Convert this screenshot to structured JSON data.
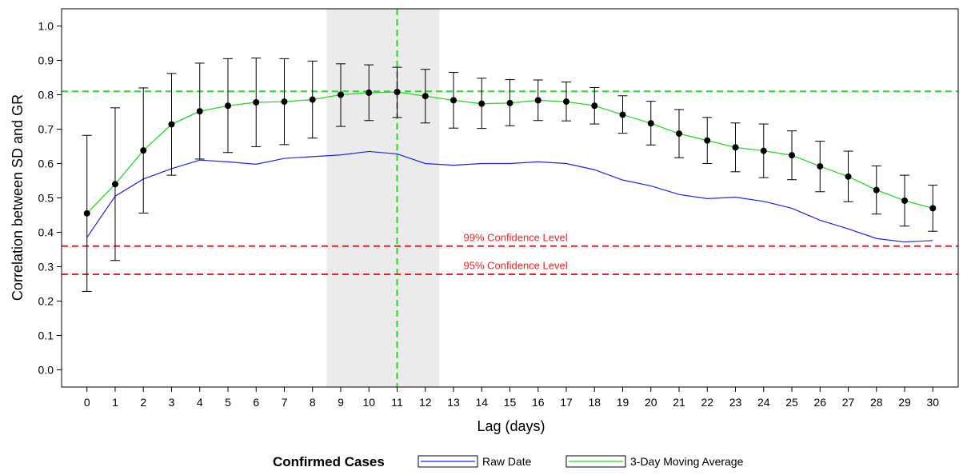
{
  "chart_data": {
    "type": "line",
    "xlabel": "Lag (days)",
    "ylabel": "Correlation between SD and GR",
    "xlim": [
      -0.9,
      30.9
    ],
    "ylim": [
      -0.05,
      1.05
    ],
    "x": [
      0,
      1,
      2,
      3,
      4,
      5,
      6,
      7,
      8,
      9,
      10,
      11,
      12,
      13,
      14,
      15,
      16,
      17,
      18,
      19,
      20,
      21,
      22,
      23,
      24,
      25,
      26,
      27,
      28,
      29,
      30
    ],
    "x_ticks": [
      0,
      1,
      2,
      3,
      4,
      5,
      6,
      7,
      8,
      9,
      10,
      11,
      12,
      13,
      14,
      15,
      16,
      17,
      18,
      19,
      20,
      21,
      22,
      23,
      24,
      25,
      26,
      27,
      28,
      29,
      30
    ],
    "y_ticks": [
      0.0,
      0.1,
      0.2,
      0.3,
      0.4,
      0.5,
      0.6,
      0.7,
      0.8,
      0.9,
      1.0
    ],
    "y_tick_labels": [
      "0.0",
      "0.1",
      "0.2",
      "0.3",
      "0.4",
      "0.5",
      "0.6",
      "0.7",
      "0.8",
      "0.9",
      "1.0"
    ],
    "grid": false,
    "shaded_region": {
      "x_start": 8.5,
      "x_end": 12.5,
      "color": "#ebebeb"
    },
    "reference_lines": [
      {
        "axis": "x",
        "value": 11,
        "color": "#22dd22",
        "style": "dashed"
      },
      {
        "axis": "y",
        "value": 0.81,
        "color": "#22dd22",
        "style": "dashed"
      },
      {
        "axis": "y",
        "value": 0.36,
        "color": "#ee2222",
        "style": "dashed"
      },
      {
        "axis": "y",
        "value": 0.278,
        "color": "#ee2222",
        "style": "dashed"
      }
    ],
    "annotations": [
      {
        "text": "99% Confidence Level",
        "x": 15.2,
        "y": 0.375,
        "color": "#ee2222"
      },
      {
        "text": "95% Confidence Level",
        "x": 15.2,
        "y": 0.293,
        "color": "#ee2222"
      }
    ],
    "series": [
      {
        "name": "Raw Date",
        "color": "#2222ee",
        "markers": false,
        "values": [
          0.385,
          0.505,
          0.555,
          0.585,
          0.61,
          0.605,
          0.598,
          0.615,
          0.62,
          0.625,
          0.635,
          0.628,
          0.6,
          0.595,
          0.6,
          0.6,
          0.605,
          0.6,
          0.582,
          0.552,
          0.535,
          0.51,
          0.498,
          0.502,
          0.49,
          0.47,
          0.435,
          0.41,
          0.382,
          0.372,
          0.376
        ]
      },
      {
        "name": "3-Day Moving Average",
        "color": "#22dd22",
        "markers": true,
        "marker_color": "#000000",
        "values": [
          0.455,
          0.54,
          0.638,
          0.714,
          0.752,
          0.768,
          0.778,
          0.78,
          0.786,
          0.8,
          0.806,
          0.808,
          0.796,
          0.784,
          0.774,
          0.776,
          0.784,
          0.78,
          0.768,
          0.742,
          0.717,
          0.687,
          0.667,
          0.647,
          0.637,
          0.624,
          0.592,
          0.562,
          0.523,
          0.492,
          0.47
        ],
        "error_low": [
          0.228,
          0.318,
          0.456,
          0.566,
          0.613,
          0.632,
          0.649,
          0.655,
          0.674,
          0.708,
          0.725,
          0.734,
          0.718,
          0.703,
          0.702,
          0.71,
          0.725,
          0.724,
          0.715,
          0.688,
          0.654,
          0.617,
          0.6,
          0.576,
          0.559,
          0.553,
          0.518,
          0.489,
          0.453,
          0.418,
          0.403
        ],
        "error_high": [
          0.682,
          0.762,
          0.82,
          0.862,
          0.892,
          0.905,
          0.907,
          0.905,
          0.898,
          0.89,
          0.887,
          0.88,
          0.874,
          0.865,
          0.848,
          0.844,
          0.843,
          0.837,
          0.821,
          0.797,
          0.781,
          0.757,
          0.734,
          0.718,
          0.715,
          0.695,
          0.665,
          0.636,
          0.593,
          0.566,
          0.537
        ]
      }
    ],
    "legend": {
      "title": "Confirmed Cases",
      "placement": "bottom-center"
    }
  }
}
